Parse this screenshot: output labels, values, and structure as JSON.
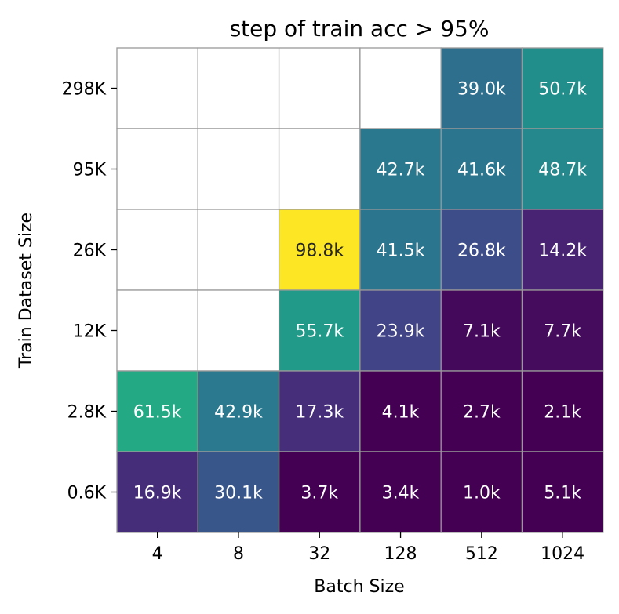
{
  "chart_data": {
    "type": "heatmap",
    "title": "step of train acc > 95%",
    "xlabel": "Batch Size",
    "ylabel": "Train Dataset Size",
    "x_categories": [
      "4",
      "8",
      "32",
      "128",
      "512",
      "1024"
    ],
    "y_categories": [
      "298K",
      "95K",
      "26K",
      "12K",
      "2.8K",
      "0.6K"
    ],
    "values": [
      [
        null,
        null,
        null,
        null,
        39.0,
        50.7
      ],
      [
        null,
        null,
        null,
        42.7,
        41.6,
        48.7
      ],
      [
        null,
        null,
        98.8,
        41.5,
        26.8,
        14.2
      ],
      [
        null,
        null,
        55.7,
        23.9,
        7.1,
        7.7
      ],
      [
        61.5,
        42.9,
        17.3,
        4.1,
        2.7,
        2.1
      ],
      [
        16.9,
        30.1,
        3.7,
        3.4,
        1.0,
        5.1
      ]
    ],
    "labels": [
      [
        "",
        "",
        "",
        "",
        "39.0k",
        "50.7k"
      ],
      [
        "",
        "",
        "",
        "42.7k",
        "41.6k",
        "48.7k"
      ],
      [
        "",
        "",
        "98.8k",
        "41.5k",
        "26.8k",
        "14.2k"
      ],
      [
        "",
        "",
        "55.7k",
        "23.9k",
        "7.1k",
        "7.7k"
      ],
      [
        "61.5k",
        "42.9k",
        "17.3k",
        "4.1k",
        "2.7k",
        "2.1k"
      ],
      [
        "16.9k",
        "30.1k",
        "3.7k",
        "3.4k",
        "1.0k",
        "5.1k"
      ]
    ],
    "colormap": "viridis",
    "value_range": [
      5,
      98.8
    ],
    "grid_color": "#999999"
  }
}
